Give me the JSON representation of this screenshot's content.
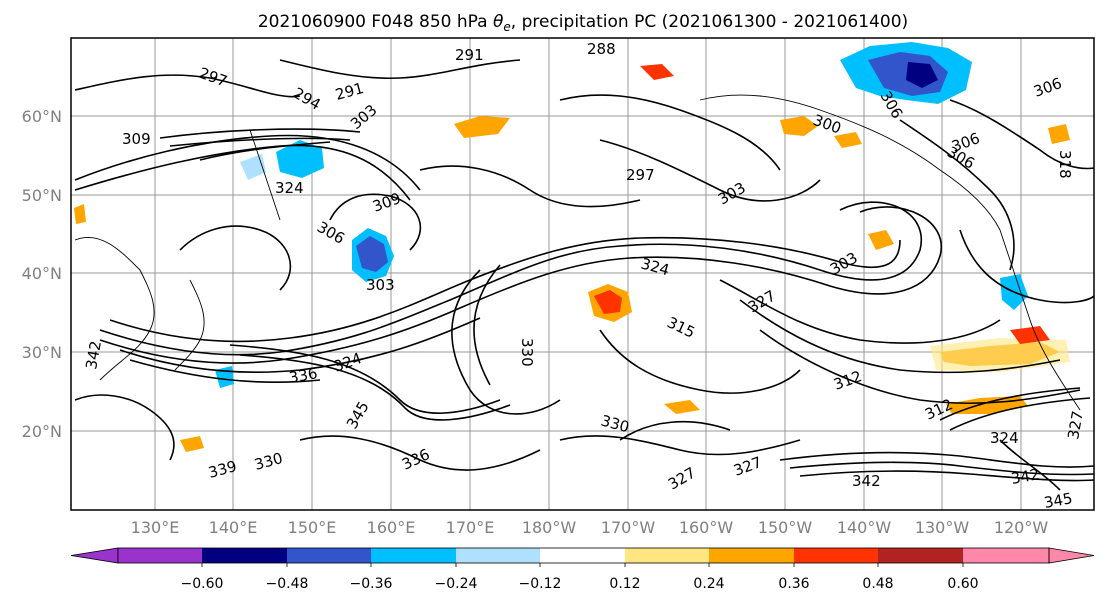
{
  "map": {
    "title_prefix": "2021060900 F048 850 hPa ",
    "title_symbol": "θ",
    "title_subscript": "e",
    "title_suffix": ", precipitation PC (2021061300 - 2021061400)",
    "lon_ticks": [
      "130°E",
      "140°E",
      "150°E",
      "160°E",
      "170°E",
      "180°W",
      "170°W",
      "160°W",
      "150°W",
      "140°W",
      "130°W",
      "120°W"
    ],
    "lat_ticks": [
      "60°N",
      "50°N",
      "40°N",
      "30°N",
      "20°N"
    ],
    "contour_labels": [
      "297",
      "294",
      "291",
      "288",
      "291",
      "309",
      "303",
      "324",
      "306",
      "309",
      "297",
      "303",
      "306",
      "324",
      "303",
      "303",
      "327",
      "315",
      "330",
      "312",
      "318",
      "342",
      "324",
      "336",
      "345",
      "330",
      "327",
      "339",
      "330",
      "336",
      "342",
      "327",
      "324",
      "342",
      "345",
      "327",
      "312",
      "306",
      "306",
      "300",
      "306"
    ]
  },
  "colorbar": {
    "colors": [
      "#9933cc",
      "#000080",
      "#3355cc",
      "#00bfff",
      "#b0e0ff",
      "#ffffff",
      "#ffe680",
      "#ffa500",
      "#ff3300",
      "#b22222",
      "#ff88aa"
    ],
    "under_color": "#9933cc",
    "over_color": "#ff88aa",
    "tick_labels": [
      "−0.60",
      "−0.48",
      "−0.36",
      "−0.24",
      "−0.12",
      "0.12",
      "0.24",
      "0.36",
      "0.48",
      "0.60"
    ]
  }
}
